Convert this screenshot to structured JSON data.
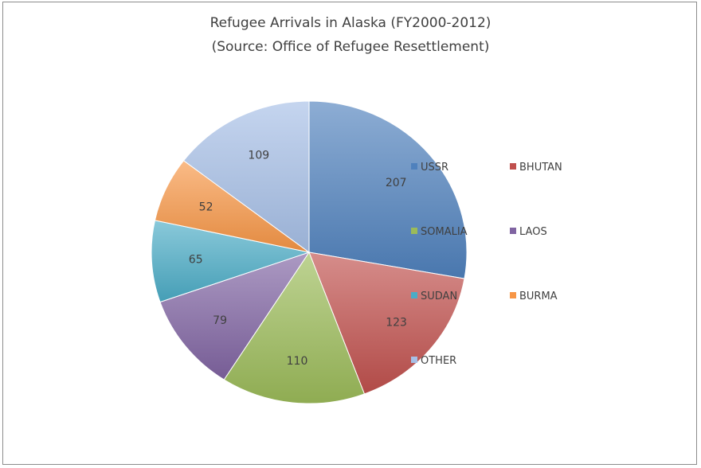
{
  "chart_data": {
    "type": "pie",
    "title": "Refugee Arrivals in Alaska (FY2000-2012)",
    "subtitle": "(Source: Office of Refugee Resettlement)",
    "categories": [
      "USSR",
      "BHUTAN",
      "SOMALIA",
      "LAOS",
      "SUDAN",
      "BURMA",
      "OTHER"
    ],
    "values": [
      207,
      123,
      110,
      79,
      65,
      52,
      109
    ],
    "colors": [
      "#4f81bd",
      "#c0504d",
      "#9bbb59",
      "#8064a2",
      "#4bacc6",
      "#f79646",
      "#a6bfe6"
    ],
    "legend_placement": "right"
  }
}
